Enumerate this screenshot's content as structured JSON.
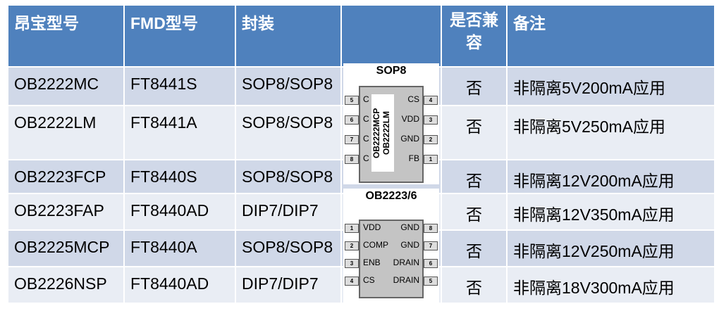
{
  "headers": [
    "昂宝型号",
    "FMD型号",
    "封装",
    "",
    "是否兼容",
    "备注"
  ],
  "rows": [
    [
      "OB2222MC",
      "FT8441S",
      "SOP8/SOP8",
      "否",
      "非隔离5V200mA应用"
    ],
    [
      "OB2222LM",
      "FT8441A",
      "SOP8/SOP8",
      "否",
      "非隔离5V250mA应用"
    ],
    [
      "OB2223FCP",
      "FT8440S",
      "SOP8/SOP8",
      "否",
      "非隔离12V200mA应用"
    ],
    [
      "OB2223FAP",
      "FT8440AD",
      "DIP7/DIP7",
      "否",
      "非隔离12V350mA应用"
    ],
    [
      "OB2225MCP",
      "FT8440A",
      "SOP8/SOP8",
      "否",
      "非隔离12V250mA应用"
    ],
    [
      "OB2226NSP",
      "FT8440AD",
      "DIP7/DIP7",
      "否",
      "非隔离18V300mA应用"
    ]
  ],
  "chip1": {
    "title": "SOP8",
    "marking": [
      "OB2222MCP",
      "OB2222LM"
    ],
    "left": [
      {
        "n": "5",
        "l": "C"
      },
      {
        "n": "6",
        "l": "C"
      },
      {
        "n": "7",
        "l": "C"
      },
      {
        "n": "8",
        "l": "C"
      }
    ],
    "right": [
      {
        "n": "4",
        "l": "CS"
      },
      {
        "n": "3",
        "l": "VDD"
      },
      {
        "n": "2",
        "l": "GND"
      },
      {
        "n": "1",
        "l": "FB"
      }
    ]
  },
  "chip2": {
    "title": "OB2223/6",
    "left": [
      {
        "n": "1",
        "l": "VDD"
      },
      {
        "n": "2",
        "l": "COMP"
      },
      {
        "n": "3",
        "l": "ENB"
      },
      {
        "n": "4",
        "l": "CS"
      }
    ],
    "right": [
      {
        "n": "8",
        "l": "GND"
      },
      {
        "n": "7",
        "l": "GND"
      },
      {
        "n": "6",
        "l": "DRAIN"
      },
      {
        "n": "5",
        "l": "DRAIN"
      }
    ]
  },
  "colors": {
    "header": "#4f81bd",
    "row_dark": "#d0d8e8",
    "row_light": "#e9edf4"
  }
}
